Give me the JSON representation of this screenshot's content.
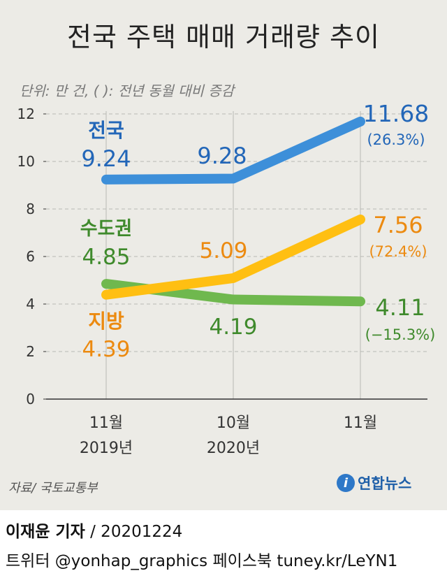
{
  "title": "전국 주택 매매 거래량 추이",
  "unit_note": "단위: 만 건, (  ): 전년 동월 대비 증감",
  "chart_data": {
    "type": "line",
    "categories": [
      [
        "11월",
        "2019년"
      ],
      [
        "10월",
        "2020년"
      ],
      [
        "11월",
        ""
      ]
    ],
    "ylim": [
      0,
      12
    ],
    "yticks": [
      0,
      2,
      4,
      6,
      8,
      10,
      12
    ],
    "grid": true,
    "series": [
      {
        "name": "전국",
        "values": [
          9.24,
          9.28,
          11.68
        ],
        "labels": [
          "9.24",
          "9.28",
          "11.68"
        ],
        "change": "(26.3%)",
        "color": "#3d8fd9",
        "label_color": "#2266b8"
      },
      {
        "name": "수도권",
        "values": [
          4.85,
          4.19,
          4.11
        ],
        "labels": [
          "4.85",
          "4.19",
          "4.11"
        ],
        "change": "(−15.3%)",
        "color": "#6fb84e",
        "label_color": "#3f8a2c"
      },
      {
        "name": "지방",
        "values": [
          4.39,
          5.09,
          7.56
        ],
        "labels": [
          "4.39",
          "5.09",
          "7.56"
        ],
        "change": "(72.4%)",
        "color": "#ffbf12",
        "label_color": "#ec8a10"
      }
    ]
  },
  "source": "자료/ 국토교통부",
  "brand": {
    "logo": "i",
    "name": "연합뉴스"
  },
  "reporter": {
    "name": "이재윤 기자",
    "date": "/ 20201224"
  },
  "credit": "트위터 @yonhap_graphics  페이스북 tuney.kr/LeYN1",
  "colors": {
    "background": "#ecebe6",
    "grid": "#b9b9b4"
  }
}
